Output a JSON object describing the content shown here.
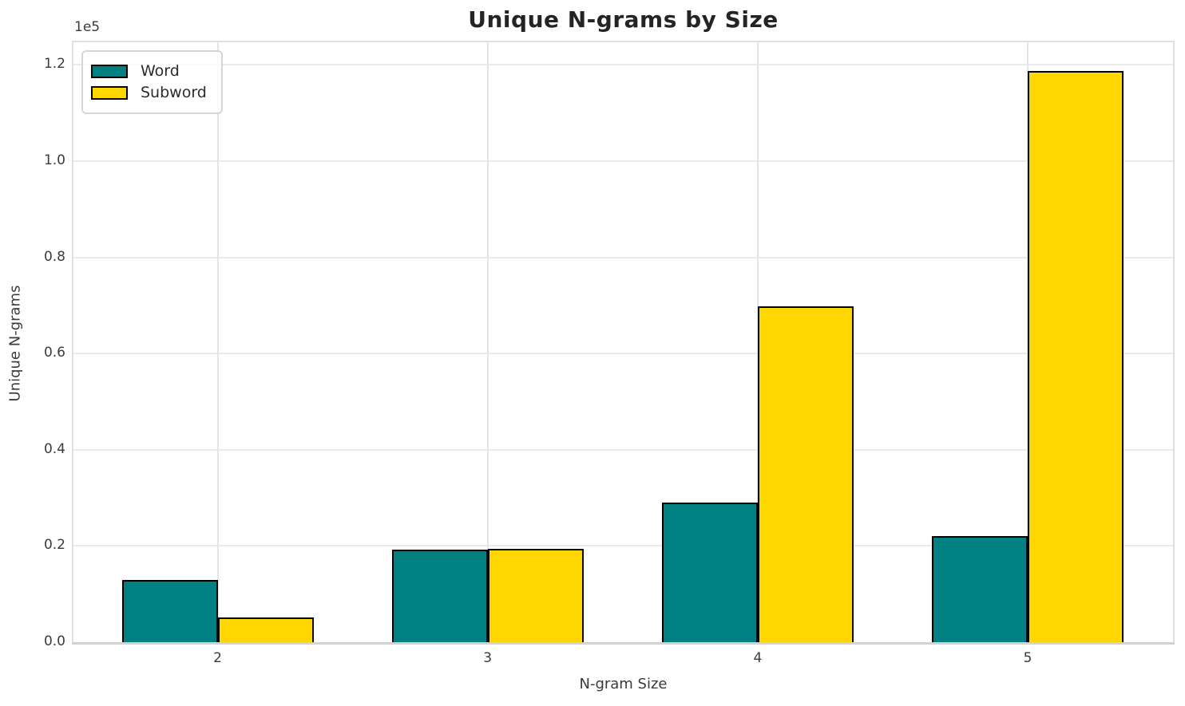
{
  "figure": {
    "title": "Unique N-grams by Size",
    "offset_text": "1e5",
    "xlabel": "N-gram Size",
    "ylabel": "Unique N-grams"
  },
  "legend": {
    "items": [
      {
        "label": "Word",
        "color": "#008080"
      },
      {
        "label": "Subword",
        "color": "#FFD700"
      }
    ]
  },
  "chart_data": {
    "type": "bar",
    "title": "Unique N-grams by Size",
    "xlabel": "N-gram Size",
    "ylabel": "Unique N-grams",
    "categories": [
      "2",
      "3",
      "4",
      "5"
    ],
    "series": [
      {
        "name": "Word",
        "color": "#008080",
        "values": [
          12900,
          19200,
          29100,
          22100
        ]
      },
      {
        "name": "Subword",
        "color": "#FFD700",
        "values": [
          5100,
          19400,
          69800,
          118700
        ]
      }
    ],
    "bar_edge_color": "#000000",
    "value_scale_note": "y axis shown in units of 1e5",
    "ylim": [
      0,
      124700
    ],
    "yticks": [
      0,
      20000,
      40000,
      60000,
      80000,
      100000,
      120000
    ],
    "ytick_labels": [
      "0.0",
      "0.2",
      "0.4",
      "0.6",
      "0.8",
      "1.0",
      "1.2"
    ],
    "offset_text": "1e5",
    "grid": true,
    "legend_position": "upper left"
  }
}
